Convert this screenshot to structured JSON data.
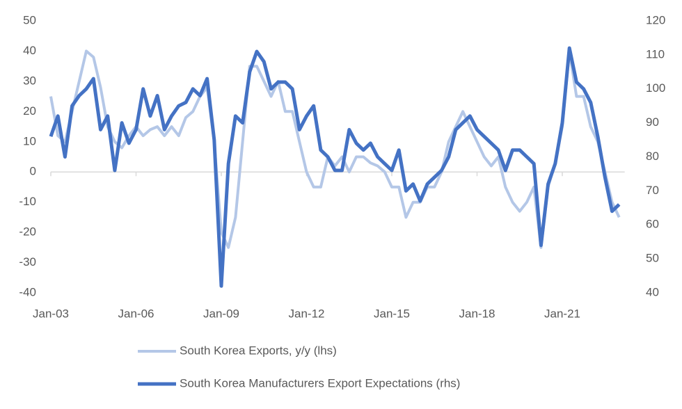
{
  "chart_data": {
    "type": "line",
    "categories": [
      "Jan-03",
      null,
      null,
      null,
      null,
      null,
      null,
      null,
      null,
      null,
      null,
      null,
      "Jan-06",
      null,
      null,
      null,
      null,
      null,
      null,
      null,
      null,
      null,
      null,
      null,
      "Jan-09",
      null,
      null,
      null,
      null,
      null,
      null,
      null,
      null,
      null,
      null,
      null,
      "Jan-12",
      null,
      null,
      null,
      null,
      null,
      null,
      null,
      null,
      null,
      null,
      null,
      "Jan-15",
      null,
      null,
      null,
      null,
      null,
      null,
      null,
      null,
      null,
      null,
      null,
      "Jan-18",
      null,
      null,
      null,
      null,
      null,
      null,
      null,
      null,
      null,
      null,
      null,
      "Jan-21",
      null,
      null,
      null,
      null,
      null,
      null,
      null,
      null
    ],
    "series": [
      {
        "name": "South Korea Exports, y/y (lhs)",
        "color": "#b4c7e7",
        "axis": "y",
        "values": [
          25,
          12,
          10,
          20,
          30,
          40,
          38,
          28,
          15,
          10,
          8,
          12,
          15,
          12,
          14,
          15,
          12,
          15,
          12,
          18,
          20,
          25,
          28,
          10,
          -20,
          -25,
          -15,
          10,
          35,
          35,
          30,
          25,
          30,
          20,
          20,
          10,
          0,
          -5,
          -5,
          5,
          2,
          5,
          0,
          5,
          5,
          3,
          2,
          0,
          -5,
          -5,
          -15,
          -10,
          -10,
          -5,
          -5,
          0,
          10,
          15,
          20,
          15,
          10,
          5,
          2,
          5,
          -5,
          -10,
          -13,
          -10,
          -5,
          -25,
          -5,
          3,
          15,
          40,
          25,
          25,
          15,
          10,
          0,
          -10,
          -15
        ]
      },
      {
        "name": "South Korea Manufacturers Export Expectations (rhs)",
        "color": "#4472c4",
        "axis": "y2",
        "values": [
          86,
          92,
          80,
          95,
          98,
          100,
          103,
          88,
          92,
          76,
          90,
          84,
          88,
          100,
          92,
          98,
          88,
          92,
          95,
          96,
          100,
          98,
          103,
          85,
          42,
          78,
          92,
          90,
          105,
          111,
          108,
          100,
          102,
          102,
          100,
          88,
          92,
          95,
          82,
          80,
          76,
          76,
          88,
          84,
          82,
          84,
          80,
          78,
          76,
          82,
          70,
          72,
          67,
          72,
          74,
          76,
          80,
          88,
          90,
          92,
          88,
          86,
          84,
          82,
          76,
          82,
          82,
          80,
          78,
          54,
          72,
          78,
          90,
          112,
          102,
          100,
          96,
          86,
          74,
          64,
          66
        ]
      }
    ],
    "ylim": [
      -40,
      50
    ],
    "yticks": [
      -40,
      -30,
      -20,
      -10,
      0,
      10,
      20,
      30,
      40,
      50
    ],
    "y2lim": [
      40,
      120
    ],
    "y2ticks": [
      40,
      50,
      60,
      70,
      80,
      90,
      100,
      110,
      120
    ],
    "legend": "bottom"
  }
}
